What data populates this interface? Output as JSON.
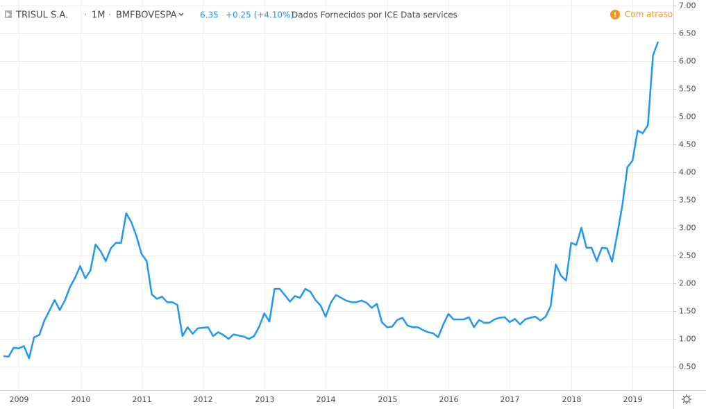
{
  "chart_data": {
    "type": "line",
    "title": "TRISUL S.A.",
    "interval": "1M",
    "exchange": "BMFBOVESPA",
    "last": "6.35",
    "change": "+0.25 (+4.10%)",
    "source": "Dados Fornecidos por ICE Data services",
    "status": "Com atraso",
    "categories": [
      null,
      null,
      null,
      "2009",
      null,
      null,
      null,
      null,
      null,
      null,
      null,
      null,
      null,
      null,
      null,
      "2010",
      null,
      null,
      null,
      null,
      null,
      null,
      null,
      null,
      null,
      null,
      null,
      "2011",
      null,
      null,
      null,
      null,
      null,
      null,
      null,
      null,
      null,
      null,
      null,
      "2012",
      null,
      null,
      null,
      null,
      null,
      null,
      null,
      null,
      null,
      null,
      null,
      "2013",
      null,
      null,
      null,
      null,
      null,
      null,
      null,
      null,
      null,
      null,
      null,
      "2014",
      null,
      null,
      null,
      null,
      null,
      null,
      null,
      null,
      null,
      null,
      null,
      "2015",
      null,
      null,
      null,
      null,
      null,
      null,
      null,
      null,
      null,
      null,
      null,
      "2016",
      null,
      null,
      null,
      null,
      null,
      null,
      null,
      null,
      null,
      null,
      null,
      "2017",
      null,
      null,
      null,
      null,
      null,
      null,
      null,
      null,
      null,
      null,
      null,
      "2018",
      null,
      null,
      null,
      null,
      null,
      null,
      null,
      null,
      null,
      null,
      null,
      "2019",
      null,
      null,
      null,
      null,
      null
    ],
    "values": [
      0.69,
      0.68,
      0.84,
      0.83,
      0.87,
      0.65,
      1.03,
      1.07,
      1.33,
      1.51,
      1.7,
      1.52,
      1.69,
      1.93,
      2.1,
      2.31,
      2.09,
      2.23,
      2.7,
      2.58,
      2.4,
      2.63,
      2.73,
      2.73,
      3.26,
      3.1,
      2.85,
      2.53,
      2.4,
      1.8,
      1.72,
      1.76,
      1.66,
      1.66,
      1.61,
      1.05,
      1.21,
      1.09,
      1.19,
      1.2,
      1.21,
      1.05,
      1.12,
      1.07,
      1.0,
      1.08,
      1.06,
      1.04,
      1.0,
      1.05,
      1.22,
      1.46,
      1.31,
      1.9,
      1.9,
      1.79,
      1.67,
      1.77,
      1.74,
      1.9,
      1.85,
      1.7,
      1.6,
      1.4,
      1.65,
      1.79,
      1.74,
      1.69,
      1.66,
      1.66,
      1.69,
      1.65,
      1.56,
      1.63,
      1.3,
      1.21,
      1.22,
      1.34,
      1.38,
      1.24,
      1.21,
      1.21,
      1.16,
      1.12,
      1.1,
      1.03,
      1.26,
      1.45,
      1.35,
      1.35,
      1.35,
      1.39,
      1.21,
      1.34,
      1.29,
      1.29,
      1.35,
      1.38,
      1.39,
      1.3,
      1.36,
      1.26,
      1.35,
      1.38,
      1.4,
      1.33,
      1.4,
      1.59,
      2.34,
      2.14,
      2.05,
      2.73,
      2.69,
      3.0,
      2.64,
      2.64,
      2.4,
      2.64,
      2.63,
      2.39,
      2.88,
      3.4,
      4.09,
      4.21,
      4.75,
      4.7,
      4.85,
      6.1,
      6.35
    ],
    "color": "#2196f3",
    "ylim": [
      0.075,
      7.1
    ],
    "yticks": [
      {
        "value": 0.5,
        "label": "0.50"
      },
      {
        "value": 1,
        "label": "1.00"
      },
      {
        "value": 1.5,
        "label": "1.50"
      },
      {
        "value": 2,
        "label": "2.00"
      },
      {
        "value": 2.5,
        "label": "2.50"
      },
      {
        "value": 3,
        "label": "3.00"
      },
      {
        "value": 3.5,
        "label": "3.50"
      },
      {
        "value": 4,
        "label": "4.00"
      },
      {
        "value": 4.5,
        "label": "4.50"
      },
      {
        "value": 5,
        "label": "5.00"
      },
      {
        "value": 5.5,
        "label": "5.50"
      },
      {
        "value": 6,
        "label": "6.00"
      },
      {
        "value": 6.5,
        "label": "6.50"
      },
      {
        "value": 7,
        "label": "7.00"
      }
    ],
    "grid": true
  }
}
